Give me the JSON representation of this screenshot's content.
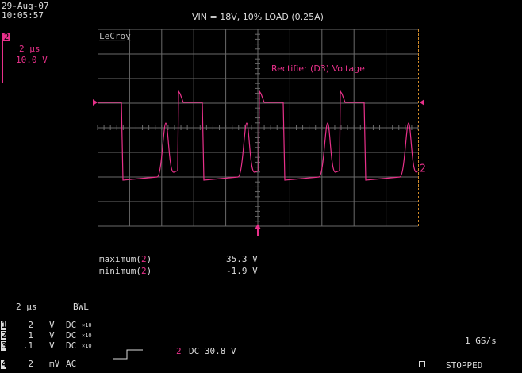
{
  "header": {
    "date": "29-Aug-07",
    "time": "10:05:57",
    "title": "VIN = 18V, 10% LOAD (0.25A)"
  },
  "channel_box": {
    "channel": "2",
    "timebase": "2 μs",
    "volts": "10.0 V"
  },
  "brand": "LeCroy",
  "trace_label": "Rectifier (D3) Voltage",
  "trace_marker": "2",
  "measurements": [
    {
      "prefix": "maximum(",
      "channel": "2",
      "suffix": ")",
      "value": "35.3 V"
    },
    {
      "prefix": "minimum(",
      "channel": "2",
      "suffix": ")",
      "value": "-1.9 V"
    }
  ],
  "status": {
    "timebase": "2 μs",
    "bandwidth": "BWL",
    "channels": [
      {
        "id": "1",
        "scale": "2",
        "unit": "V",
        "coupling": "DC",
        "probe": "×10"
      },
      {
        "id": "2",
        "scale": "1",
        "unit": "V",
        "coupling": "DC",
        "probe": "×10"
      },
      {
        "id": "3",
        "scale": ".1",
        "unit": "V",
        "coupling": "DC",
        "probe": "×10"
      },
      {
        "id": "4",
        "scale": "2",
        "unit": "mV",
        "coupling": "AC"
      }
    ],
    "trigger": {
      "channel": "2",
      "setting": "DC 30.8 V"
    },
    "sample_rate": "1 GS/s",
    "state": "STOPPED"
  }
}
